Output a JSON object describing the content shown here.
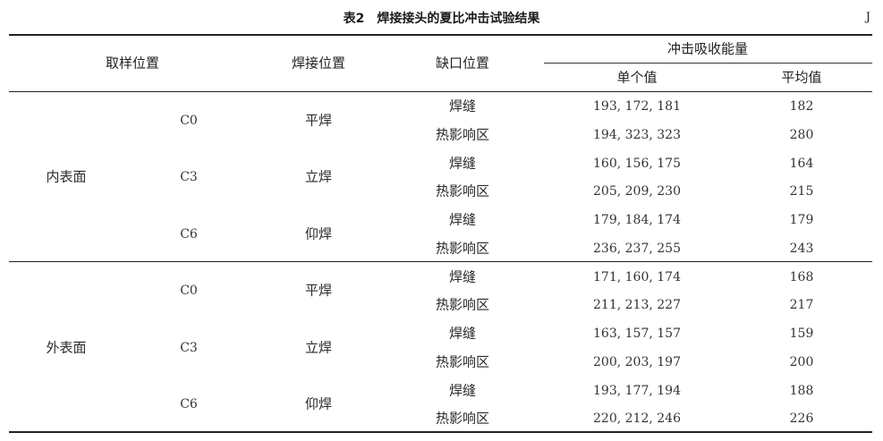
{
  "caption": {
    "number": "表2",
    "title": "焊接接头的夏比冲击试验结果"
  },
  "unit": "J",
  "headers": {
    "sample_position": "取样位置",
    "weld_position": "焊接位置",
    "notch_position": "缺口位置",
    "impact_energy": "冲击吸收能量",
    "individual": "单个值",
    "average": "平均值"
  },
  "groups": [
    {
      "surface": "内表面",
      "locations": [
        {
          "code": "C0",
          "weld": "平焊",
          "rows": [
            {
              "notch": "焊缝",
              "values": "193, 172, 181",
              "avg": "182"
            },
            {
              "notch": "热影响区",
              "values": "194, 323, 323",
              "avg": "280"
            }
          ]
        },
        {
          "code": "C3",
          "weld": "立焊",
          "rows": [
            {
              "notch": "焊缝",
              "values": "160, 156, 175",
              "avg": "164"
            },
            {
              "notch": "热影响区",
              "values": "205, 209, 230",
              "avg": "215"
            }
          ]
        },
        {
          "code": "C6",
          "weld": "仰焊",
          "rows": [
            {
              "notch": "焊缝",
              "values": "179, 184, 174",
              "avg": "179"
            },
            {
              "notch": "热影响区",
              "values": "236, 237, 255",
              "avg": "243"
            }
          ]
        }
      ]
    },
    {
      "surface": "外表面",
      "locations": [
        {
          "code": "C0",
          "weld": "平焊",
          "rows": [
            {
              "notch": "焊缝",
              "values": "171, 160, 174",
              "avg": "168"
            },
            {
              "notch": "热影响区",
              "values": "211, 213, 227",
              "avg": "217"
            }
          ]
        },
        {
          "code": "C3",
          "weld": "立焊",
          "rows": [
            {
              "notch": "焊缝",
              "values": "163, 157, 157",
              "avg": "159"
            },
            {
              "notch": "热影响区",
              "values": "200, 203, 197",
              "avg": "200"
            }
          ]
        },
        {
          "code": "C6",
          "weld": "仰焊",
          "rows": [
            {
              "notch": "焊缝",
              "values": "193, 177, 194",
              "avg": "188"
            },
            {
              "notch": "热影响区",
              "values": "220, 212, 246",
              "avg": "226"
            }
          ]
        }
      ]
    }
  ]
}
